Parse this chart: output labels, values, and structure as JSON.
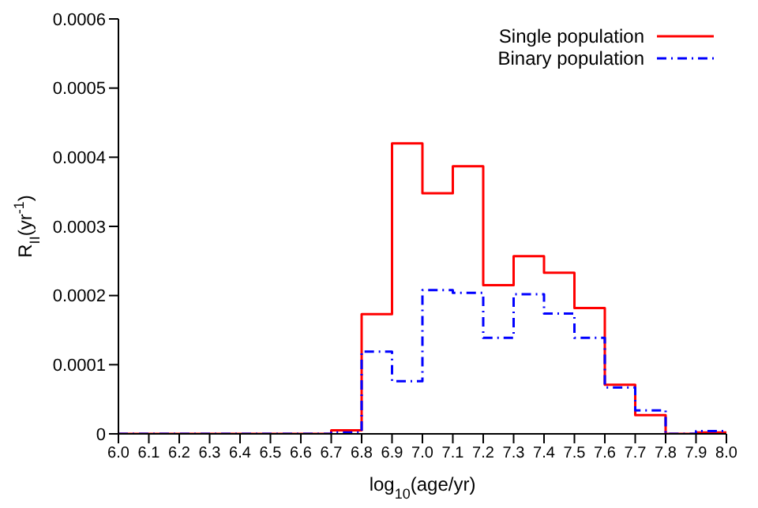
{
  "chart_data": {
    "type": "histogram",
    "xlabel": "log$_{10}$(age/yr)",
    "ylabel": "R$_{II}$(yr$^{-1}$)",
    "bins": [
      6.0,
      6.1,
      6.2,
      6.3,
      6.4,
      6.5,
      6.6,
      6.7,
      6.8,
      6.9,
      7.0,
      7.1,
      7.2,
      7.3,
      7.4,
      7.5,
      7.6,
      7.7,
      7.8,
      7.9,
      8.0
    ],
    "series": [
      {
        "name": "Single population",
        "color": "#ff0000",
        "line_style": "solid",
        "values": [
          0,
          0,
          0,
          0,
          0,
          0,
          0,
          5e-06,
          0.000173,
          0.00042,
          0.000348,
          0.000387,
          0.000215,
          0.000257,
          0.000233,
          0.000182,
          7.1e-05,
          2.7e-05,
          0,
          2e-06
        ]
      },
      {
        "name": "Binary population",
        "color": "#0000ff",
        "line_style": "dashdot",
        "values": [
          0,
          0,
          0,
          0,
          0,
          0,
          0,
          2e-06,
          0.000119,
          7.6e-05,
          0.000208,
          0.000204,
          0.000139,
          0.000202,
          0.000174,
          0.000139,
          6.7e-05,
          3.4e-05,
          0,
          4e-06
        ]
      }
    ],
    "xlim": [
      6.0,
      8.0
    ],
    "xticks": [
      {
        "value": 6.0,
        "label": "6.0"
      },
      {
        "value": 6.1,
        "label": "6.1"
      },
      {
        "value": 6.2,
        "label": "6.2"
      },
      {
        "value": 6.3,
        "label": "6.3"
      },
      {
        "value": 6.4,
        "label": "6.4"
      },
      {
        "value": 6.5,
        "label": "6.5"
      },
      {
        "value": 6.6,
        "label": "6.6"
      },
      {
        "value": 6.7,
        "label": "6.7"
      },
      {
        "value": 6.8,
        "label": "6.8"
      },
      {
        "value": 6.9,
        "label": "6.9"
      },
      {
        "value": 7.0,
        "label": "7.0"
      },
      {
        "value": 7.1,
        "label": "7.1"
      },
      {
        "value": 7.2,
        "label": "7.2"
      },
      {
        "value": 7.3,
        "label": "7.3"
      },
      {
        "value": 7.4,
        "label": "7.4"
      },
      {
        "value": 7.5,
        "label": "7.5"
      },
      {
        "value": 7.6,
        "label": "7.6"
      },
      {
        "value": 7.7,
        "label": "7.7"
      },
      {
        "value": 7.8,
        "label": "7.8"
      },
      {
        "value": 7.9,
        "label": "7.9"
      },
      {
        "value": 8.0,
        "label": "8.0"
      }
    ],
    "ylim": [
      0,
      0.0006
    ],
    "yticks": [
      0,
      0.0001,
      0.0002,
      0.0003,
      0.0004,
      0.0005,
      0.0006
    ],
    "grid": false,
    "legend": "top right"
  }
}
